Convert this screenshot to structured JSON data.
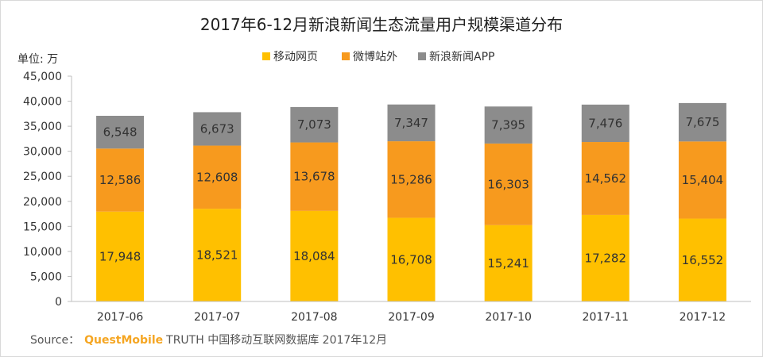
{
  "source": {
    "prefix": "Source：",
    "brand": "QuestMobile",
    "text": "TRUTH 中国移动互联网数据库 2017年12月"
  },
  "chart_data": {
    "type": "bar",
    "stacked": true,
    "title": "2017年6-12月新浪新闻生态流量用户规模渠道分布",
    "unit_label": "单位: 万",
    "xlabel": "",
    "ylabel": "",
    "ylim": [
      0,
      45000
    ],
    "yticks": [
      0,
      5000,
      10000,
      15000,
      20000,
      25000,
      30000,
      35000,
      40000,
      45000
    ],
    "ytick_labels": [
      "0",
      "5,000",
      "10,000",
      "15,000",
      "20,000",
      "25,000",
      "30,000",
      "35,000",
      "40,000",
      "45,000"
    ],
    "grid": false,
    "legend_position": "top-center",
    "categories": [
      "2017-06",
      "2017-07",
      "2017-08",
      "2017-09",
      "2017-10",
      "2017-11",
      "2017-12"
    ],
    "series": [
      {
        "name": "移动网页",
        "color": "#ffc000",
        "values": [
          17948,
          18521,
          18084,
          16708,
          15241,
          17282,
          16552
        ],
        "labels": [
          "17,948",
          "18,521",
          "18,084",
          "16,708",
          "15,241",
          "17,282",
          "16,552"
        ]
      },
      {
        "name": "微博站外",
        "color": "#f79a1e",
        "values": [
          12586,
          12608,
          13678,
          15286,
          16303,
          14562,
          15404
        ],
        "labels": [
          "12,586",
          "12,608",
          "13,678",
          "15,286",
          "16,303",
          "14,562",
          "15,404"
        ]
      },
      {
        "name": "新浪新闻APP",
        "color": "#8c8c8c",
        "values": [
          6548,
          6673,
          7073,
          7347,
          7395,
          7476,
          7675
        ],
        "labels": [
          "6,548",
          "6,673",
          "7,073",
          "7,347",
          "7,395",
          "7,476",
          "7,675"
        ]
      }
    ]
  }
}
